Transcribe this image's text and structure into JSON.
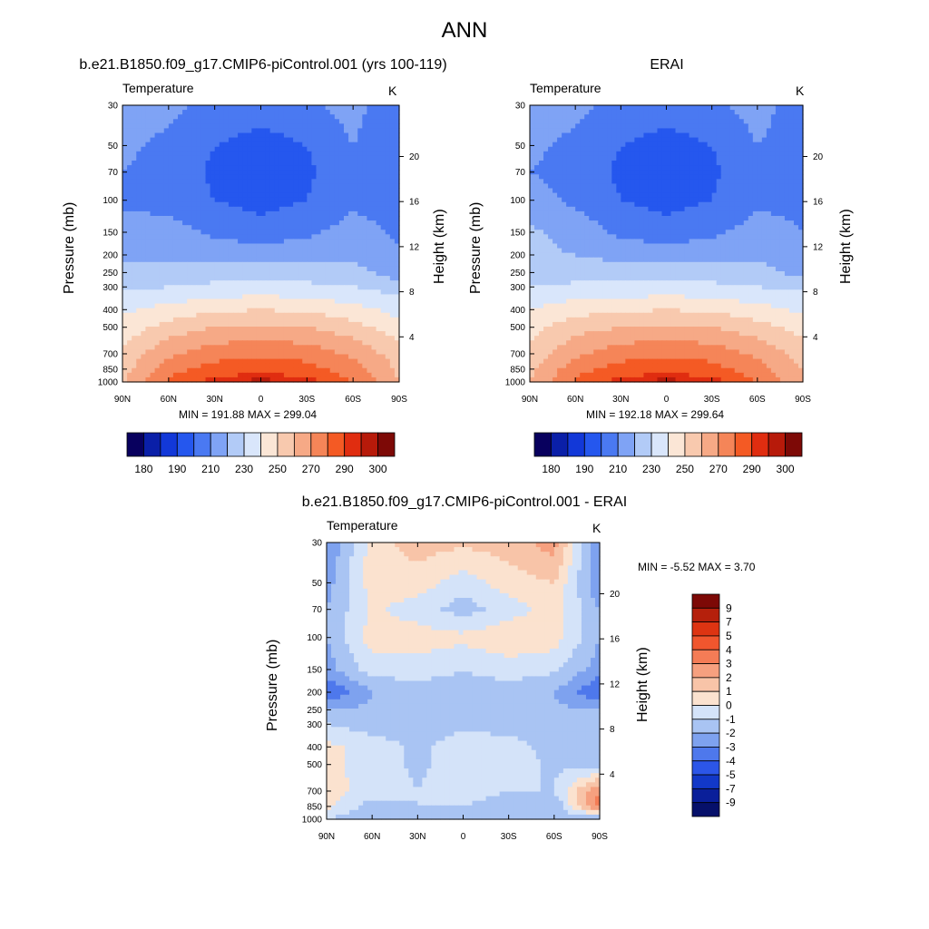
{
  "title": "ANN",
  "panels": [
    {
      "id": "model",
      "title": "b.e21.B1850.f09_g17.CMIP6-piControl.001 (yrs 100-119)",
      "left_string": "Temperature",
      "right_string": "K",
      "stats": "MIN = 191.88  MAX = 299.04"
    },
    {
      "id": "obs",
      "title": "ERAI",
      "left_string": "Temperature",
      "right_string": "K",
      "stats": "MIN = 192.18  MAX = 299.64"
    },
    {
      "id": "diff",
      "title": "b.e21.B1850.f09_g17.CMIP6-piControl.001 - ERAI",
      "left_string": "Temperature",
      "right_string": "K",
      "stats": "MIN =  -5.52  MAX =   3.70"
    }
  ],
  "axes": {
    "ylabel_left": "Pressure (mb)",
    "ylabel_right": "Height (km)",
    "pressure_ticks": [
      "30",
      "50",
      "70",
      "100",
      "150",
      "200",
      "250",
      "300",
      "400",
      "500",
      "700",
      "850",
      "1000"
    ],
    "height_ticks": [
      "20",
      "16",
      "12",
      "8",
      "4"
    ],
    "lat_ticks": [
      "90N",
      "60N",
      "30N",
      "0",
      "30S",
      "60S",
      "90S"
    ]
  },
  "colorbars": {
    "abs_labels": [
      "180",
      "190",
      "210",
      "230",
      "250",
      "270",
      "290",
      "300"
    ],
    "abs_colors": [
      "#08005e",
      "#0a1fa8",
      "#1238d8",
      "#2557ee",
      "#4a79f2",
      "#7fa3f5",
      "#b2cbf7",
      "#d9e6fb",
      "#fbe6d6",
      "#f8c9ae",
      "#f6a986",
      "#f58558",
      "#f45a24",
      "#e02d10",
      "#b71a0a",
      "#7d0906"
    ],
    "diff_labels": [
      "9",
      "7",
      "5",
      "4",
      "3",
      "2",
      "1",
      "0",
      "-1",
      "-2",
      "-3",
      "-4",
      "-5",
      "-7",
      "-9"
    ],
    "diff_colors": [
      "#7d0906",
      "#b5200c",
      "#dd3412",
      "#f0562e",
      "#f47c56",
      "#f6a07f",
      "#f8c4a8",
      "#fbe2cf",
      "#d4e3f9",
      "#a9c4f3",
      "#7ea2ef",
      "#4e78ec",
      "#2c56e8",
      "#1238c8",
      "#0a1f9a",
      "#06106a"
    ]
  },
  "chart_data": [
    {
      "type": "heatmap",
      "title": "b.e21.B1850.f09_g17.CMIP6-piControl.001 (yrs 100-119)",
      "variable": "Temperature",
      "units": "K",
      "x": [
        "90N",
        "60N",
        "30N",
        "0",
        "30S",
        "60S",
        "90S"
      ],
      "y": [
        30,
        50,
        70,
        100,
        150,
        200,
        250,
        300,
        400,
        500,
        700,
        850,
        1000
      ],
      "ylabel": "Pressure (mb)",
      "ylabel_right": "Height (km)",
      "values": [
        [
          215,
          212,
          208,
          205,
          208,
          214,
          200
        ],
        [
          212,
          208,
          200,
          196,
          200,
          210,
          202
        ],
        [
          210,
          206,
          198,
          194,
          198,
          208,
          204
        ],
        [
          208,
          206,
          200,
          196,
          200,
          208,
          206
        ],
        [
          215,
          214,
          208,
          205,
          208,
          214,
          208
        ],
        [
          218,
          218,
          216,
          214,
          216,
          218,
          212
        ],
        [
          222,
          224,
          226,
          226,
          226,
          224,
          214
        ],
        [
          228,
          230,
          232,
          234,
          232,
          230,
          226
        ],
        [
          238,
          244,
          248,
          250,
          248,
          244,
          236
        ],
        [
          244,
          254,
          260,
          262,
          260,
          254,
          244
        ],
        [
          252,
          268,
          276,
          278,
          276,
          268,
          255
        ],
        [
          256,
          276,
          284,
          286,
          284,
          274,
          258
        ],
        [
          258,
          282,
          294,
          298,
          294,
          280,
          260
        ]
      ],
      "min": 191.88,
      "max": 299.04,
      "levels": [
        180,
        185,
        190,
        200,
        210,
        220,
        230,
        240,
        250,
        260,
        270,
        280,
        290,
        295,
        300
      ]
    },
    {
      "type": "heatmap",
      "title": "ERAI",
      "variable": "Temperature",
      "units": "K",
      "x": [
        "90N",
        "60N",
        "30N",
        "0",
        "30S",
        "60S",
        "90S"
      ],
      "y": [
        30,
        50,
        70,
        100,
        150,
        200,
        250,
        300,
        400,
        500,
        700,
        850,
        1000
      ],
      "ylabel": "Pressure (mb)",
      "ylabel_right": "Height (km)",
      "values": [
        [
          215,
          212,
          208,
          205,
          208,
          214,
          204
        ],
        [
          212,
          208,
          200,
          196,
          200,
          210,
          206
        ],
        [
          210,
          206,
          198,
          194,
          198,
          208,
          206
        ],
        [
          214,
          208,
          200,
          196,
          200,
          208,
          208
        ],
        [
          222,
          216,
          208,
          205,
          208,
          214,
          210
        ],
        [
          222,
          220,
          216,
          214,
          216,
          218,
          212
        ],
        [
          224,
          226,
          226,
          226,
          226,
          224,
          216
        ],
        [
          230,
          232,
          232,
          234,
          232,
          230,
          228
        ],
        [
          240,
          246,
          248,
          250,
          248,
          244,
          238
        ],
        [
          246,
          256,
          260,
          262,
          260,
          254,
          246
        ],
        [
          254,
          268,
          276,
          278,
          276,
          268,
          255
        ],
        [
          258,
          276,
          284,
          286,
          284,
          274,
          260
        ],
        [
          260,
          282,
          294,
          298,
          294,
          280,
          262
        ]
      ],
      "min": 192.18,
      "max": 299.64,
      "levels": [
        180,
        185,
        190,
        200,
        210,
        220,
        230,
        240,
        250,
        260,
        270,
        280,
        290,
        295,
        300
      ]
    },
    {
      "type": "heatmap",
      "title": "b.e21.B1850.f09_g17.CMIP6-piControl.001 - ERAI",
      "variable": "Temperature",
      "units": "K",
      "x": [
        "90N",
        "60N",
        "30N",
        "0",
        "30S",
        "60S",
        "90S"
      ],
      "y": [
        30,
        50,
        70,
        100,
        150,
        200,
        250,
        300,
        400,
        500,
        700,
        850,
        1000
      ],
      "ylabel": "Pressure (mb)",
      "ylabel_right": "Height (km)",
      "values": [
        [
          -3,
          0.5,
          1.5,
          1.2,
          1.5,
          2.5,
          -3
        ],
        [
          -2.5,
          0.5,
          0.5,
          -0.5,
          0.5,
          1,
          -3
        ],
        [
          -2,
          0.2,
          -0.5,
          -1.5,
          -0.5,
          0.5,
          -2
        ],
        [
          -2,
          0.5,
          0.5,
          0.3,
          0.8,
          0.5,
          -2
        ],
        [
          -2.5,
          -0.5,
          -0.5,
          -1,
          -0.5,
          -0.8,
          -2.5
        ],
        [
          -4,
          -2,
          -1.5,
          -1.5,
          -1.5,
          -2,
          -4
        ],
        [
          -2,
          -1.8,
          -1.5,
          -1.5,
          -1.5,
          -1.8,
          -2
        ],
        [
          -1,
          -1.5,
          -1.5,
          -1.2,
          -1.5,
          -1.5,
          -1.5
        ],
        [
          0.3,
          -0.5,
          -1.2,
          -0.5,
          -0.5,
          -1.5,
          -1.5
        ],
        [
          0.3,
          -0.5,
          -1.2,
          -0.5,
          -0.5,
          -1.2,
          -1.5
        ],
        [
          0.5,
          -0.5,
          -1,
          -0.5,
          -1,
          -1,
          3
        ],
        [
          0.3,
          -1.5,
          -1,
          -1,
          -1.5,
          -2,
          3.5
        ],
        [
          -1,
          -2,
          -1.5,
          -1.5,
          -2,
          -2,
          -2
        ]
      ],
      "min": -5.52,
      "max": 3.7,
      "levels": [
        -9,
        -7,
        -5,
        -4,
        -3,
        -2,
        -1,
        0,
        1,
        2,
        3,
        4,
        5,
        7,
        9
      ]
    }
  ]
}
